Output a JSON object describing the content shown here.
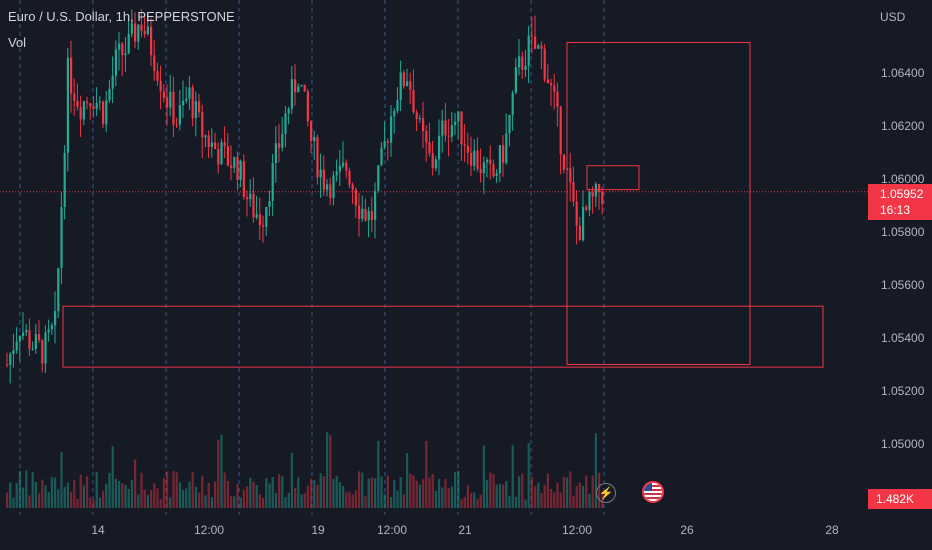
{
  "header": {
    "symbol_line": "Euro / U.S. Dollar, 1h, PEPPERSTONE",
    "volume_label": "Vol"
  },
  "price_axis": {
    "currency": "USD",
    "tick_labels": [
      "1.06400",
      "1.06200",
      "1.06000",
      "1.05800",
      "1.05600",
      "1.05400",
      "1.05200",
      "1.05000"
    ]
  },
  "time_axis": {
    "tick_labels": [
      "14",
      "12:00",
      "19",
      "12:00",
      "21",
      "12:00",
      "26",
      "28"
    ]
  },
  "last_price": {
    "value": "1.05952",
    "countdown": "16:13"
  },
  "volume": {
    "last_value": "1.482K"
  },
  "events": [
    {
      "icon": "lightning-icon"
    },
    {
      "icon": "us-flag-icon"
    }
  ],
  "colors": {
    "background": "#161a25",
    "up_candle": "#22ab94",
    "down_candle": "#f23645",
    "zone_border": "#f23645",
    "grid_dashed": "#3a66b0",
    "axis_text": "#b2b5be"
  },
  "chart_data": {
    "type": "candlestick",
    "symbol": "EURUSD",
    "timeframe": "1h",
    "ylim": [
      1.0485,
      1.0672
    ],
    "last_price": 1.05952,
    "approx_close_path": [
      1.053,
      1.0545,
      1.0538,
      1.0535,
      1.0545,
      1.064,
      1.0628,
      1.0632,
      1.0625,
      1.0645,
      1.065,
      1.066,
      1.0648,
      1.0632,
      1.0622,
      1.0632,
      1.0618,
      1.0612,
      1.0608,
      1.0605,
      1.059,
      1.0585,
      1.0605,
      1.0625,
      1.064,
      1.0615,
      1.06,
      1.0598,
      1.0605,
      1.059,
      1.0585,
      1.061,
      1.0632,
      1.064,
      1.0618,
      1.0605,
      1.062,
      1.0622,
      1.0612,
      1.0605,
      1.06,
      1.0612,
      1.064,
      1.065,
      1.0648,
      1.063,
      1.0605,
      1.058,
      1.059,
      1.0595
    ],
    "zones": [
      {
        "low": 1.053,
        "high": 1.06515
      },
      {
        "low": 1.0596,
        "high": 1.0605
      },
      {
        "low": 1.0529,
        "high": 1.0552
      }
    ]
  }
}
